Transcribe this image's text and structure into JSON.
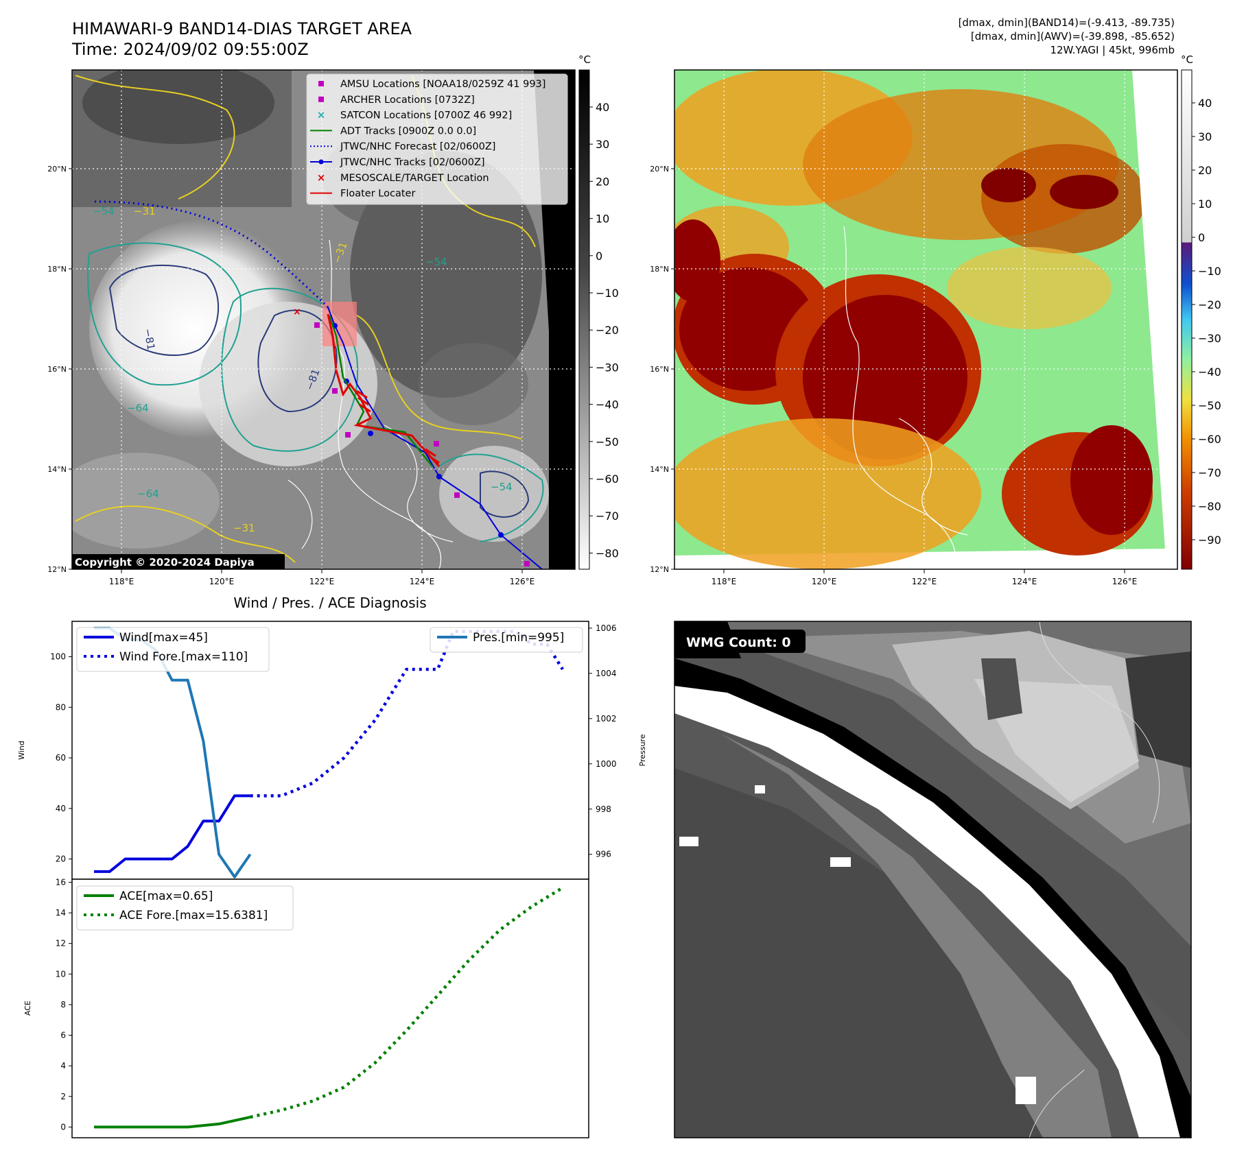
{
  "header": {
    "title": "HIMAWARI-9 BAND14-DIAS TARGET AREA",
    "time": "Time: 2024/09/02 09:55:00Z",
    "dmax_band14": "[dmax, dmin](BAND14)=(-9.413, -89.735)",
    "dmax_awv": "[dmax, dmin](AWV)=(-39.898, -85.652)",
    "storm": "12W.YAGI | 45kt, 996mb"
  },
  "map": {
    "unit": "°C",
    "lat_ticks": [
      "20°N",
      "18°N",
      "16°N",
      "14°N",
      "12°N"
    ],
    "lon_ticks": [
      "118°E",
      "120°E",
      "122°E",
      "124°E",
      "126°E"
    ],
    "colorbar_left_ticks": [
      "40",
      "30",
      "20",
      "10",
      "0",
      "−10",
      "−20",
      "−30",
      "−40",
      "−50",
      "−60",
      "−70",
      "−80"
    ],
    "colorbar_right_ticks": [
      "40",
      "30",
      "20",
      "10",
      "0",
      "−10",
      "−20",
      "−30",
      "−40",
      "−50",
      "−60",
      "−70",
      "−80",
      "−90"
    ],
    "copyright": "Copyright © 2020-2024 Dapiya",
    "contour_labels": [
      "−31",
      "−54",
      "−64",
      "−81",
      "−31",
      "−54",
      "−64",
      "−81",
      "−31",
      "−54"
    ],
    "legend": [
      {
        "label": "AMSU Locations [NOAA18/0259Z 41 993]",
        "color": "#c000c0",
        "marker": "square"
      },
      {
        "label": "ARCHER Locations [0732Z]",
        "color": "#c000c0",
        "marker": "square"
      },
      {
        "label": "SATCON Locations [0700Z 46 992]",
        "color": "#20b0b0",
        "marker": "x"
      },
      {
        "label": "ADT Tracks [0900Z 0.0 0.0]",
        "color": "#008000",
        "marker": "line"
      },
      {
        "label": "JTWC/NHC Forecast [02/0600Z]",
        "color": "#0000dd",
        "marker": "dotted"
      },
      {
        "label": "JTWC/NHC Tracks [02/0600Z]",
        "color": "#0000dd",
        "marker": "line-dot"
      },
      {
        "label": "MESOSCALE/TARGET Location",
        "color": "#e00000",
        "marker": "x"
      },
      {
        "label": "Floater Locater",
        "color": "#e00000",
        "marker": "line"
      }
    ],
    "wmg_label": "WMG Count: 0"
  },
  "chart_data": [
    {
      "type": "line",
      "title": "Wind / Pres. / ACE Diagnosis",
      "ylabel": "Wind",
      "ylabel_right": "Pressure",
      "ylim": [
        12,
        114
      ],
      "ylim_right": [
        994.9,
        1006.3
      ],
      "y_ticks": [
        20,
        40,
        60,
        80,
        100
      ],
      "y_ticks_right": [
        996,
        998,
        1000,
        1002,
        1004,
        1006
      ],
      "series": [
        {
          "name": "Wind[max=45]",
          "axis": "left",
          "color": "#0000dd",
          "style": "solid",
          "x": [
            0,
            1,
            2,
            3,
            4,
            5,
            6,
            7,
            8,
            9,
            10
          ],
          "values": [
            15,
            15,
            20,
            20,
            20,
            20,
            25,
            35,
            35,
            45,
            45
          ]
        },
        {
          "name": "Wind Fore.[max=110]",
          "axis": "left",
          "color": "#0000dd",
          "style": "dotted",
          "x": [
            10,
            12,
            14,
            16,
            18,
            20,
            21,
            22,
            23,
            24,
            25,
            26,
            27,
            28,
            29,
            30
          ],
          "values": [
            45,
            45,
            50,
            60,
            75,
            95,
            95,
            95,
            110,
            110,
            110,
            110,
            110,
            105,
            105,
            95
          ]
        },
        {
          "name": "Pres.[min=995]",
          "axis": "right",
          "color": "#1f77b4",
          "style": "solid",
          "x": [
            0,
            1,
            2,
            3,
            4,
            5,
            6,
            7,
            8,
            9,
            10
          ],
          "values": [
            1006,
            1006,
            1005.5,
            1005.5,
            1005,
            1003.7,
            1003.7,
            1001,
            996,
            995,
            996
          ]
        }
      ]
    },
    {
      "type": "line",
      "ylabel": "ACE",
      "ylim": [
        -0.7,
        16.2
      ],
      "y_ticks": [
        0,
        2,
        4,
        6,
        8,
        10,
        12,
        14,
        16
      ],
      "series": [
        {
          "name": "ACE[max=0.65]",
          "color": "#008000",
          "style": "solid",
          "x": [
            0,
            2,
            4,
            6,
            8,
            10
          ],
          "values": [
            0,
            0,
            0,
            0,
            0.2,
            0.65
          ]
        },
        {
          "name": "ACE Fore.[max=15.6381]",
          "color": "#008000",
          "style": "dotted",
          "x": [
            10,
            12,
            14,
            16,
            18,
            20,
            22,
            24,
            26,
            28,
            30
          ],
          "values": [
            0.65,
            1.1,
            1.7,
            2.6,
            4.2,
            6.3,
            8.6,
            10.9,
            12.9,
            14.4,
            15.64
          ]
        }
      ]
    }
  ]
}
